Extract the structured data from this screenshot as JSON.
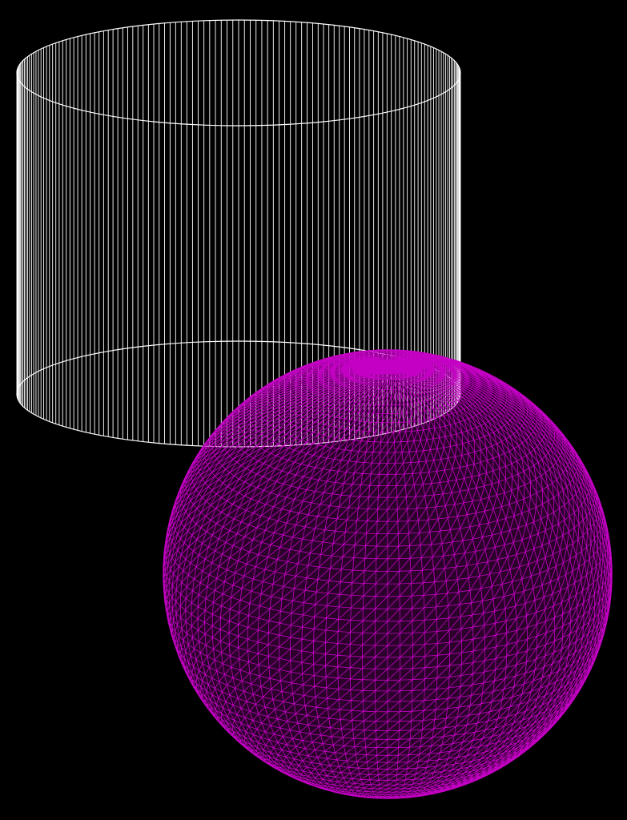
{
  "scene": {
    "background_color": "#000000",
    "objects": [
      {
        "name": "cylinder",
        "kind": "wireframe-cylinder",
        "color": "#ffffff",
        "vertical_segments": 240
      },
      {
        "name": "sphere",
        "kind": "wireframe-sphere",
        "color": "#c400c4",
        "mesh_density": "high"
      }
    ]
  }
}
